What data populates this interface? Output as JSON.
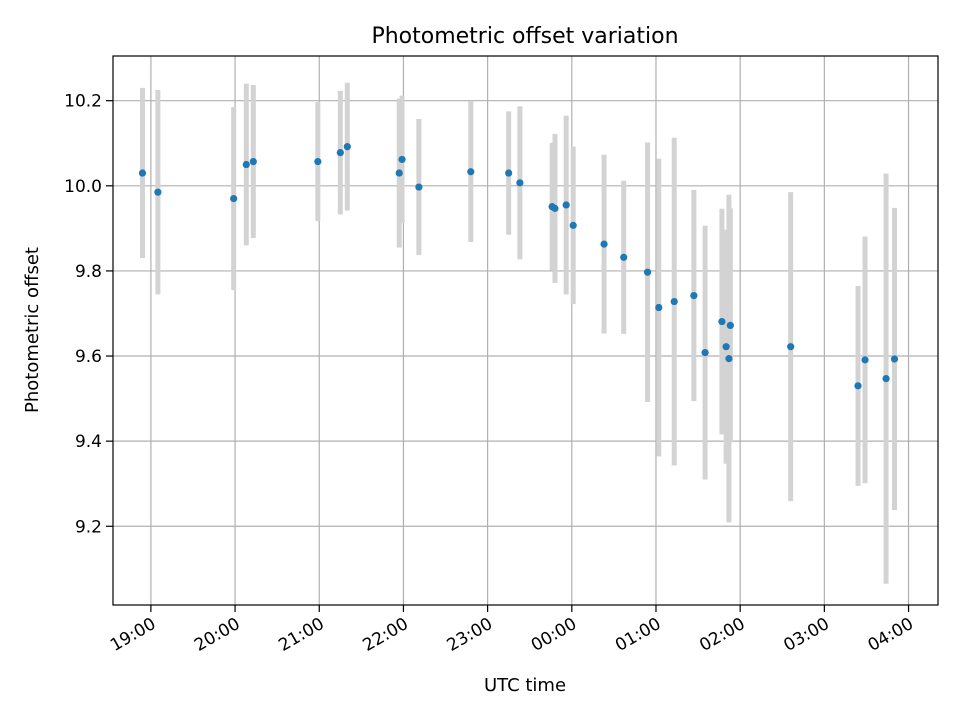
{
  "chart_data": {
    "type": "scatter",
    "title": "Photometric offset variation",
    "xlabel": "UTC time",
    "ylabel": "Photometric offset",
    "grid": true,
    "legend": "none",
    "errorbar_color": "#d3d3d3",
    "marker_color": "#1f77b4",
    "xlim_hours": [
      18.55,
      28.35
    ],
    "ylim": [
      9.015,
      10.305
    ],
    "x_ticks": [
      {
        "h": 19,
        "label": "19:00"
      },
      {
        "h": 20,
        "label": "20:00"
      },
      {
        "h": 21,
        "label": "21:00"
      },
      {
        "h": 22,
        "label": "22:00"
      },
      {
        "h": 23,
        "label": "23:00"
      },
      {
        "h": 24,
        "label": "00:00"
      },
      {
        "h": 25,
        "label": "01:00"
      },
      {
        "h": 26,
        "label": "02:00"
      },
      {
        "h": 27,
        "label": "03:00"
      },
      {
        "h": 28,
        "label": "04:00"
      }
    ],
    "y_ticks": [
      {
        "v": 9.2,
        "label": "9.2"
      },
      {
        "v": 9.4,
        "label": "9.4"
      },
      {
        "v": 9.6,
        "label": "9.6"
      },
      {
        "v": 9.8,
        "label": "9.8"
      },
      {
        "v": 10.0,
        "label": "10.0"
      },
      {
        "v": 10.2,
        "label": "10.2"
      }
    ],
    "points": [
      {
        "t": "18:54",
        "y": 10.03,
        "err": 0.2
      },
      {
        "t": "19:05",
        "y": 9.985,
        "err": 0.24
      },
      {
        "t": "19:59",
        "y": 9.97,
        "err": 0.215
      },
      {
        "t": "20:08",
        "y": 10.05,
        "err": 0.19
      },
      {
        "t": "20:13",
        "y": 10.057,
        "err": 0.18
      },
      {
        "t": "20:59",
        "y": 10.057,
        "err": 0.14
      },
      {
        "t": "21:15",
        "y": 10.078,
        "err": 0.145
      },
      {
        "t": "21:20",
        "y": 10.092,
        "err": 0.15
      },
      {
        "t": "21:57",
        "y": 10.03,
        "err": 0.175
      },
      {
        "t": "21:59",
        "y": 10.062,
        "err": 0.15
      },
      {
        "t": "22:11",
        "y": 9.997,
        "err": 0.16
      },
      {
        "t": "22:48",
        "y": 10.033,
        "err": 0.165
      },
      {
        "t": "23:15",
        "y": 10.03,
        "err": 0.145
      },
      {
        "t": "23:23",
        "y": 10.007,
        "err": 0.18
      },
      {
        "t": "23:46",
        "y": 9.951,
        "err": 0.15
      },
      {
        "t": "23:48",
        "y": 9.947,
        "err": 0.175
      },
      {
        "t": "23:56",
        "y": 9.955,
        "err": 0.21
      },
      {
        "t": "00:01",
        "y": 9.907,
        "err": 0.185
      },
      {
        "t": "00:23",
        "y": 9.863,
        "err": 0.21
      },
      {
        "t": "00:37",
        "y": 9.832,
        "err": 0.18
      },
      {
        "t": "00:54",
        "y": 9.797,
        "err": 0.305
      },
      {
        "t": "01:02",
        "y": 9.714,
        "err": 0.35
      },
      {
        "t": "01:13",
        "y": 9.728,
        "err": 0.385
      },
      {
        "t": "01:27",
        "y": 9.742,
        "err": 0.248
      },
      {
        "t": "01:35",
        "y": 9.608,
        "err": 0.298
      },
      {
        "t": "01:47",
        "y": 9.681,
        "err": 0.265
      },
      {
        "t": "01:50",
        "y": 9.622,
        "err": 0.275
      },
      {
        "t": "01:52",
        "y": 9.594,
        "err": 0.385
      },
      {
        "t": "01:53",
        "y": 9.672,
        "err": 0.275
      },
      {
        "t": "02:36",
        "y": 9.622,
        "err": 0.363
      },
      {
        "t": "03:24",
        "y": 9.53,
        "err": 0.235
      },
      {
        "t": "03:29",
        "y": 9.591,
        "err": 0.29
      },
      {
        "t": "03:44",
        "y": 9.547,
        "err": 0.482
      },
      {
        "t": "03:50",
        "y": 9.593,
        "err": 0.355
      }
    ]
  }
}
